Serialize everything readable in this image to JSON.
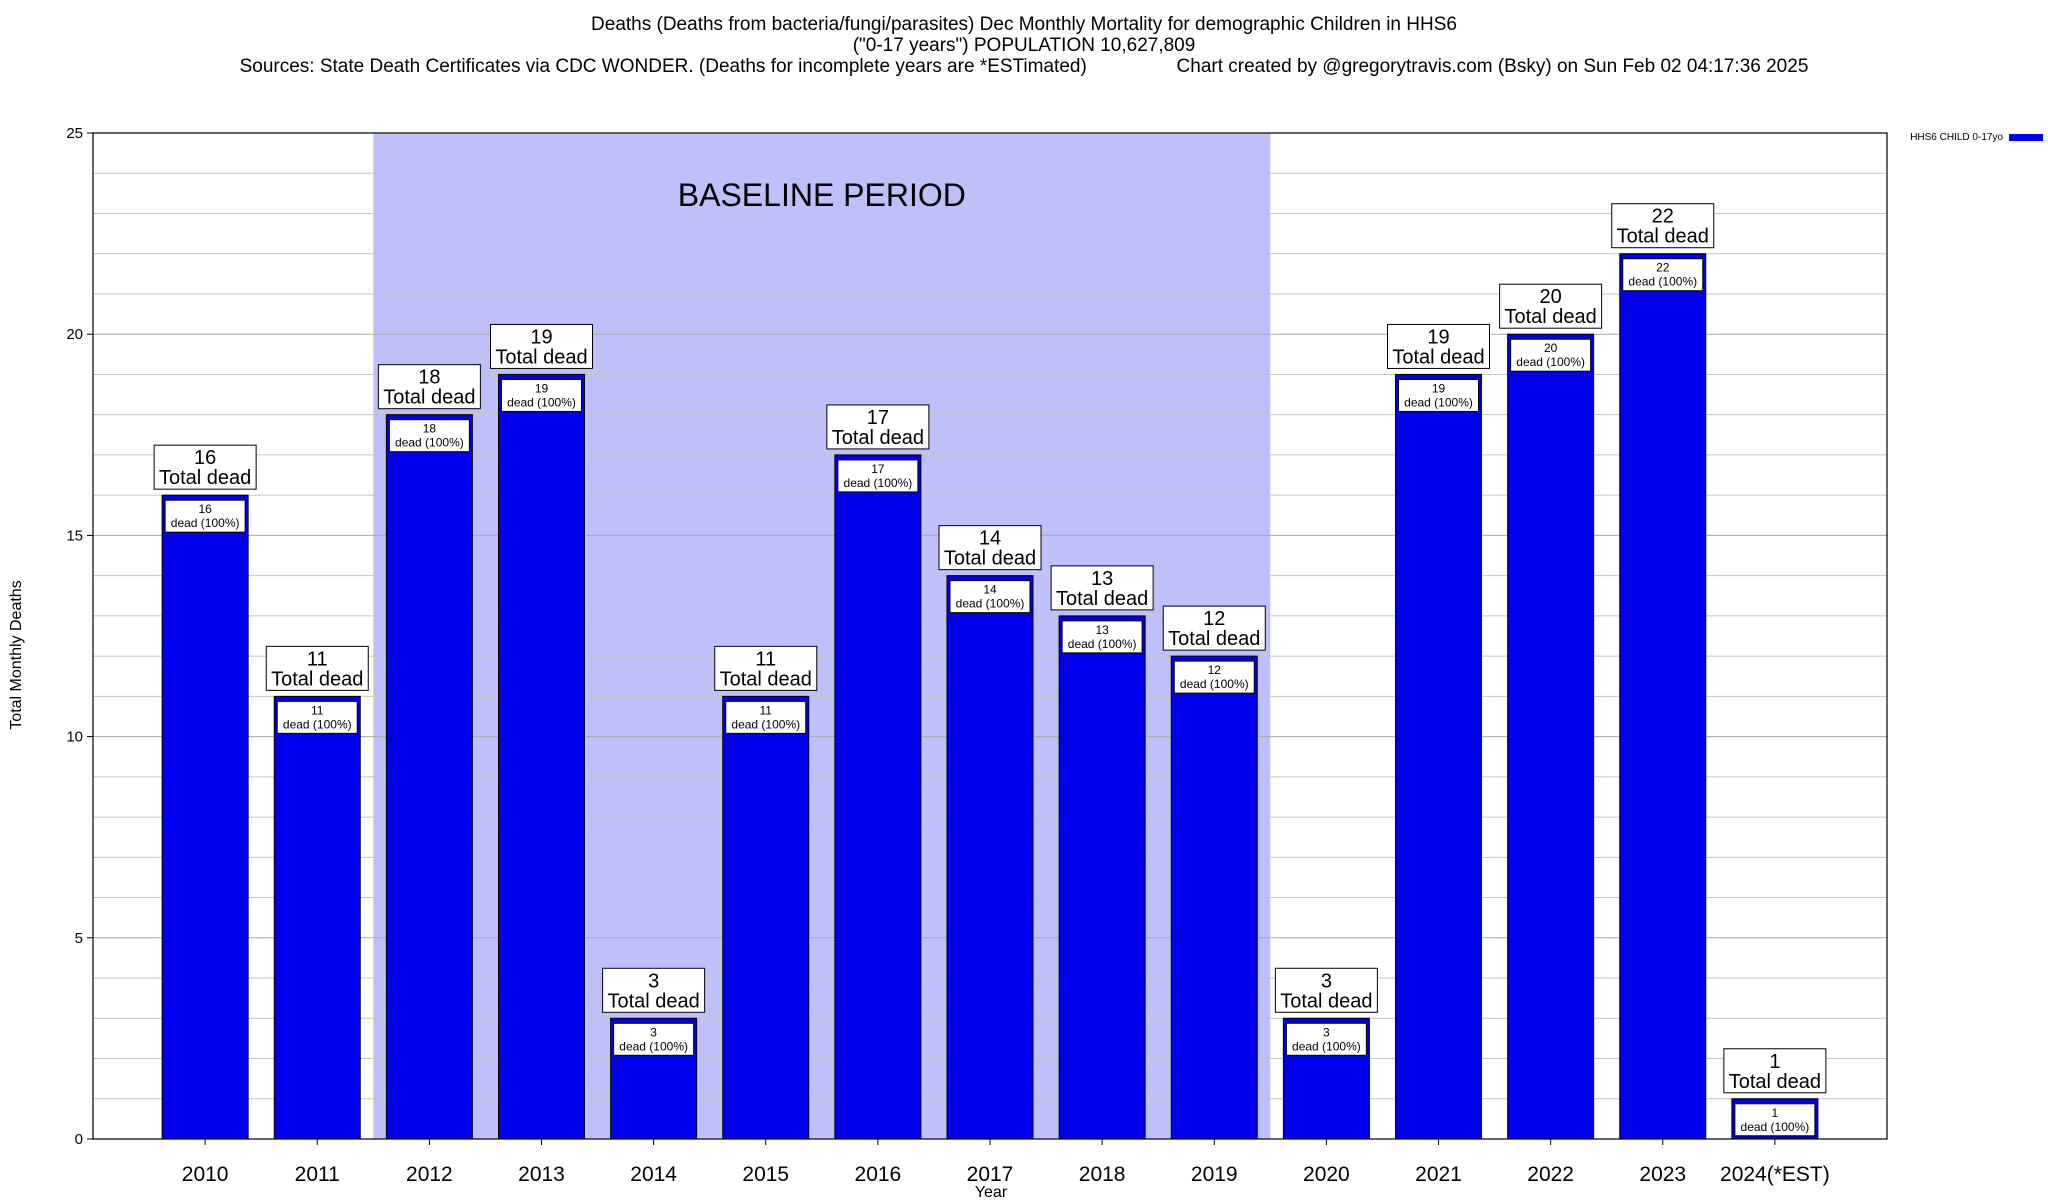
{
  "chart_data": {
    "type": "bar",
    "title_lines": [
      "Deaths (Deaths from bacteria/fungi/parasites) Dec Monthly Mortality for demographic Children in HHS6",
      "(\"0-17 years\") POPULATION 10,627,809"
    ],
    "sources": "Sources: State Death Certificates via CDC WONDER. (Deaths for incomplete years are *ESTimated)",
    "credit": "Chart created by @gregorytravis.com (Bsky) on Sun Feb 02 04:17:36 2025",
    "xlabel": "Year",
    "ylabel": "Total Monthly Deaths",
    "ylim": [
      0,
      25
    ],
    "yticks": [
      0,
      5,
      10,
      15,
      20,
      25
    ],
    "grid": true,
    "categories": [
      "2010",
      "2011",
      "2012",
      "2013",
      "2014",
      "2015",
      "2016",
      "2017",
      "2018",
      "2019",
      "2020",
      "2021",
      "2022",
      "2023",
      "2024(*EST)"
    ],
    "series": [
      {
        "name": "HHS6 CHILD 0-17yo",
        "color": "#0000ee",
        "values": [
          16,
          11,
          18,
          19,
          3,
          11,
          17,
          14,
          13,
          12,
          3,
          19,
          20,
          22,
          1
        ]
      }
    ],
    "total_label_suffix": "Total dead",
    "inner_label_suffix": "dead (100%)",
    "baseline": {
      "label": "BASELINE PERIOD",
      "from": "2012",
      "to": "2019",
      "color": "#bfbffa"
    },
    "legend_position": "top-right"
  }
}
